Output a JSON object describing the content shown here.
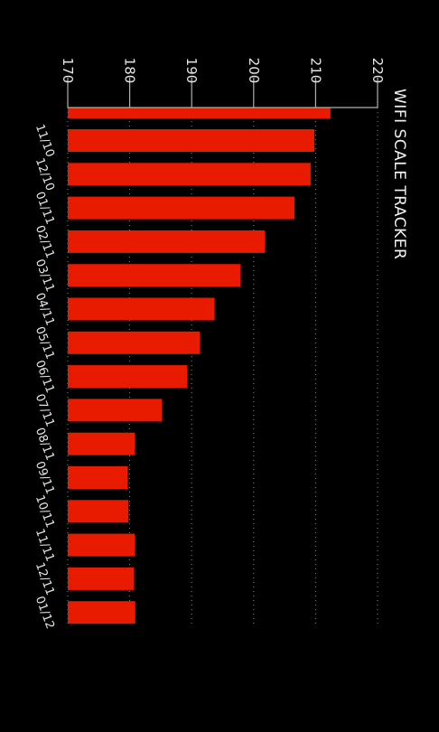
{
  "app": {
    "title": "WIFI SCALE TRACKER"
  },
  "colors": {
    "background": "#000000",
    "bar": "#e81a00",
    "text": "#e6e6e6"
  },
  "chart_data": {
    "type": "bar",
    "orientation": "horizontal",
    "title": "WIFI SCALE TRACKER",
    "xlim": [
      170,
      220
    ],
    "ticks": [
      170,
      180,
      190,
      200,
      210,
      220
    ],
    "grid": true,
    "first_value": 212.4,
    "categories": [
      "11/10",
      "12/10",
      "01/11",
      "02/11",
      "03/11",
      "04/11",
      "05/11",
      "06/11",
      "07/11",
      "08/11",
      "09/11",
      "10/11",
      "11/11",
      "12/11",
      "01/12"
    ],
    "values": [
      209.8,
      209.2,
      206.6,
      201.8,
      197.9,
      193.7,
      191.3,
      189.3,
      185.2,
      180.8,
      179.7,
      179.8,
      180.8,
      180.7,
      180.9
    ]
  }
}
